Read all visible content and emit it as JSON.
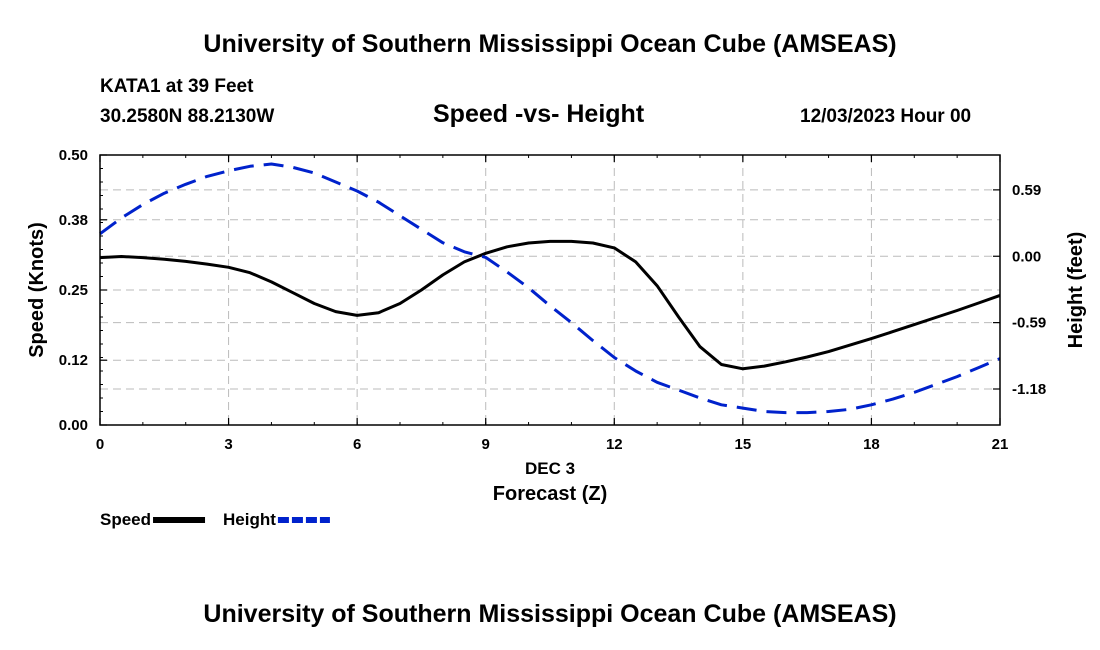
{
  "page": {
    "top_title": "University of Southern Mississippi Ocean Cube (AMSEAS)",
    "bottom_title": "University of Southern Mississippi Ocean Cube (AMSEAS)",
    "station": "KATA1 at 39 Feet",
    "coords": "30.2580N  88.2130W",
    "datetime": "12/03/2023 Hour 00"
  },
  "chart_data": {
    "type": "line",
    "title": "Speed -vs- Height",
    "xlabel": "Forecast (Z)",
    "date_label": "DEC 3",
    "ylabel": "Speed (Knots)",
    "y2label": "Height (feet)",
    "xlim": [
      0,
      21
    ],
    "ylim": [
      0,
      0.5
    ],
    "y2lim": [
      -1.5,
      0.9
    ],
    "x_ticks": [
      "0",
      "3",
      "6",
      "9",
      "12",
      "15",
      "18",
      "21"
    ],
    "y_ticks": [
      "0.00",
      "0.12",
      "0.25",
      "0.38",
      "0.50"
    ],
    "y2_ticks": [
      "-1.18",
      "-0.59",
      "0.00",
      "0.59"
    ],
    "grid": true,
    "series": [
      {
        "name": "Speed",
        "axis": "left",
        "color": "#000000",
        "style": "solid",
        "x": [
          0,
          0.5,
          1,
          1.5,
          2,
          2.5,
          3,
          3.5,
          4,
          4.5,
          5,
          5.5,
          6,
          6.5,
          7,
          7.5,
          8,
          8.5,
          9,
          9.5,
          10,
          10.5,
          11,
          11.5,
          12,
          12.5,
          13,
          13.5,
          14,
          14.5,
          15,
          15.5,
          16,
          16.5,
          17,
          17.5,
          18,
          18.5,
          19,
          19.5,
          20,
          20.5,
          21
        ],
        "values": [
          0.31,
          0.312,
          0.31,
          0.307,
          0.303,
          0.298,
          0.292,
          0.282,
          0.265,
          0.245,
          0.225,
          0.21,
          0.203,
          0.208,
          0.225,
          0.25,
          0.278,
          0.302,
          0.318,
          0.33,
          0.337,
          0.34,
          0.34,
          0.337,
          0.328,
          0.302,
          0.258,
          0.2,
          0.145,
          0.112,
          0.104,
          0.109,
          0.117,
          0.126,
          0.136,
          0.148,
          0.16,
          0.173,
          0.186,
          0.199,
          0.212,
          0.226,
          0.24
        ]
      },
      {
        "name": "Height",
        "axis": "right",
        "color": "#0022cc",
        "style": "dashed",
        "x": [
          0,
          0.5,
          1,
          1.5,
          2,
          2.5,
          3,
          3.5,
          4,
          4.5,
          5,
          5.5,
          6,
          6.5,
          7,
          7.5,
          8,
          8.5,
          9,
          9.5,
          10,
          10.5,
          11,
          11.5,
          12,
          12.5,
          13,
          13.5,
          14,
          14.5,
          15,
          15.5,
          16,
          16.5,
          17,
          17.5,
          18,
          18.5,
          19,
          19.5,
          20,
          20.5,
          21
        ],
        "values": [
          0.2,
          0.34,
          0.46,
          0.56,
          0.64,
          0.71,
          0.76,
          0.8,
          0.82,
          0.79,
          0.74,
          0.66,
          0.58,
          0.48,
          0.36,
          0.24,
          0.12,
          0.04,
          -0.01,
          -0.14,
          -0.28,
          -0.44,
          -0.59,
          -0.75,
          -0.9,
          -1.02,
          -1.12,
          -1.19,
          -1.26,
          -1.32,
          -1.35,
          -1.38,
          -1.39,
          -1.39,
          -1.38,
          -1.36,
          -1.32,
          -1.27,
          -1.21,
          -1.14,
          -1.07,
          -0.99,
          -0.91
        ]
      }
    ],
    "legend": [
      {
        "label": "Speed",
        "color": "#000000",
        "style": "solid"
      },
      {
        "label": "Height",
        "color": "#0022cc",
        "style": "dashed"
      }
    ]
  }
}
